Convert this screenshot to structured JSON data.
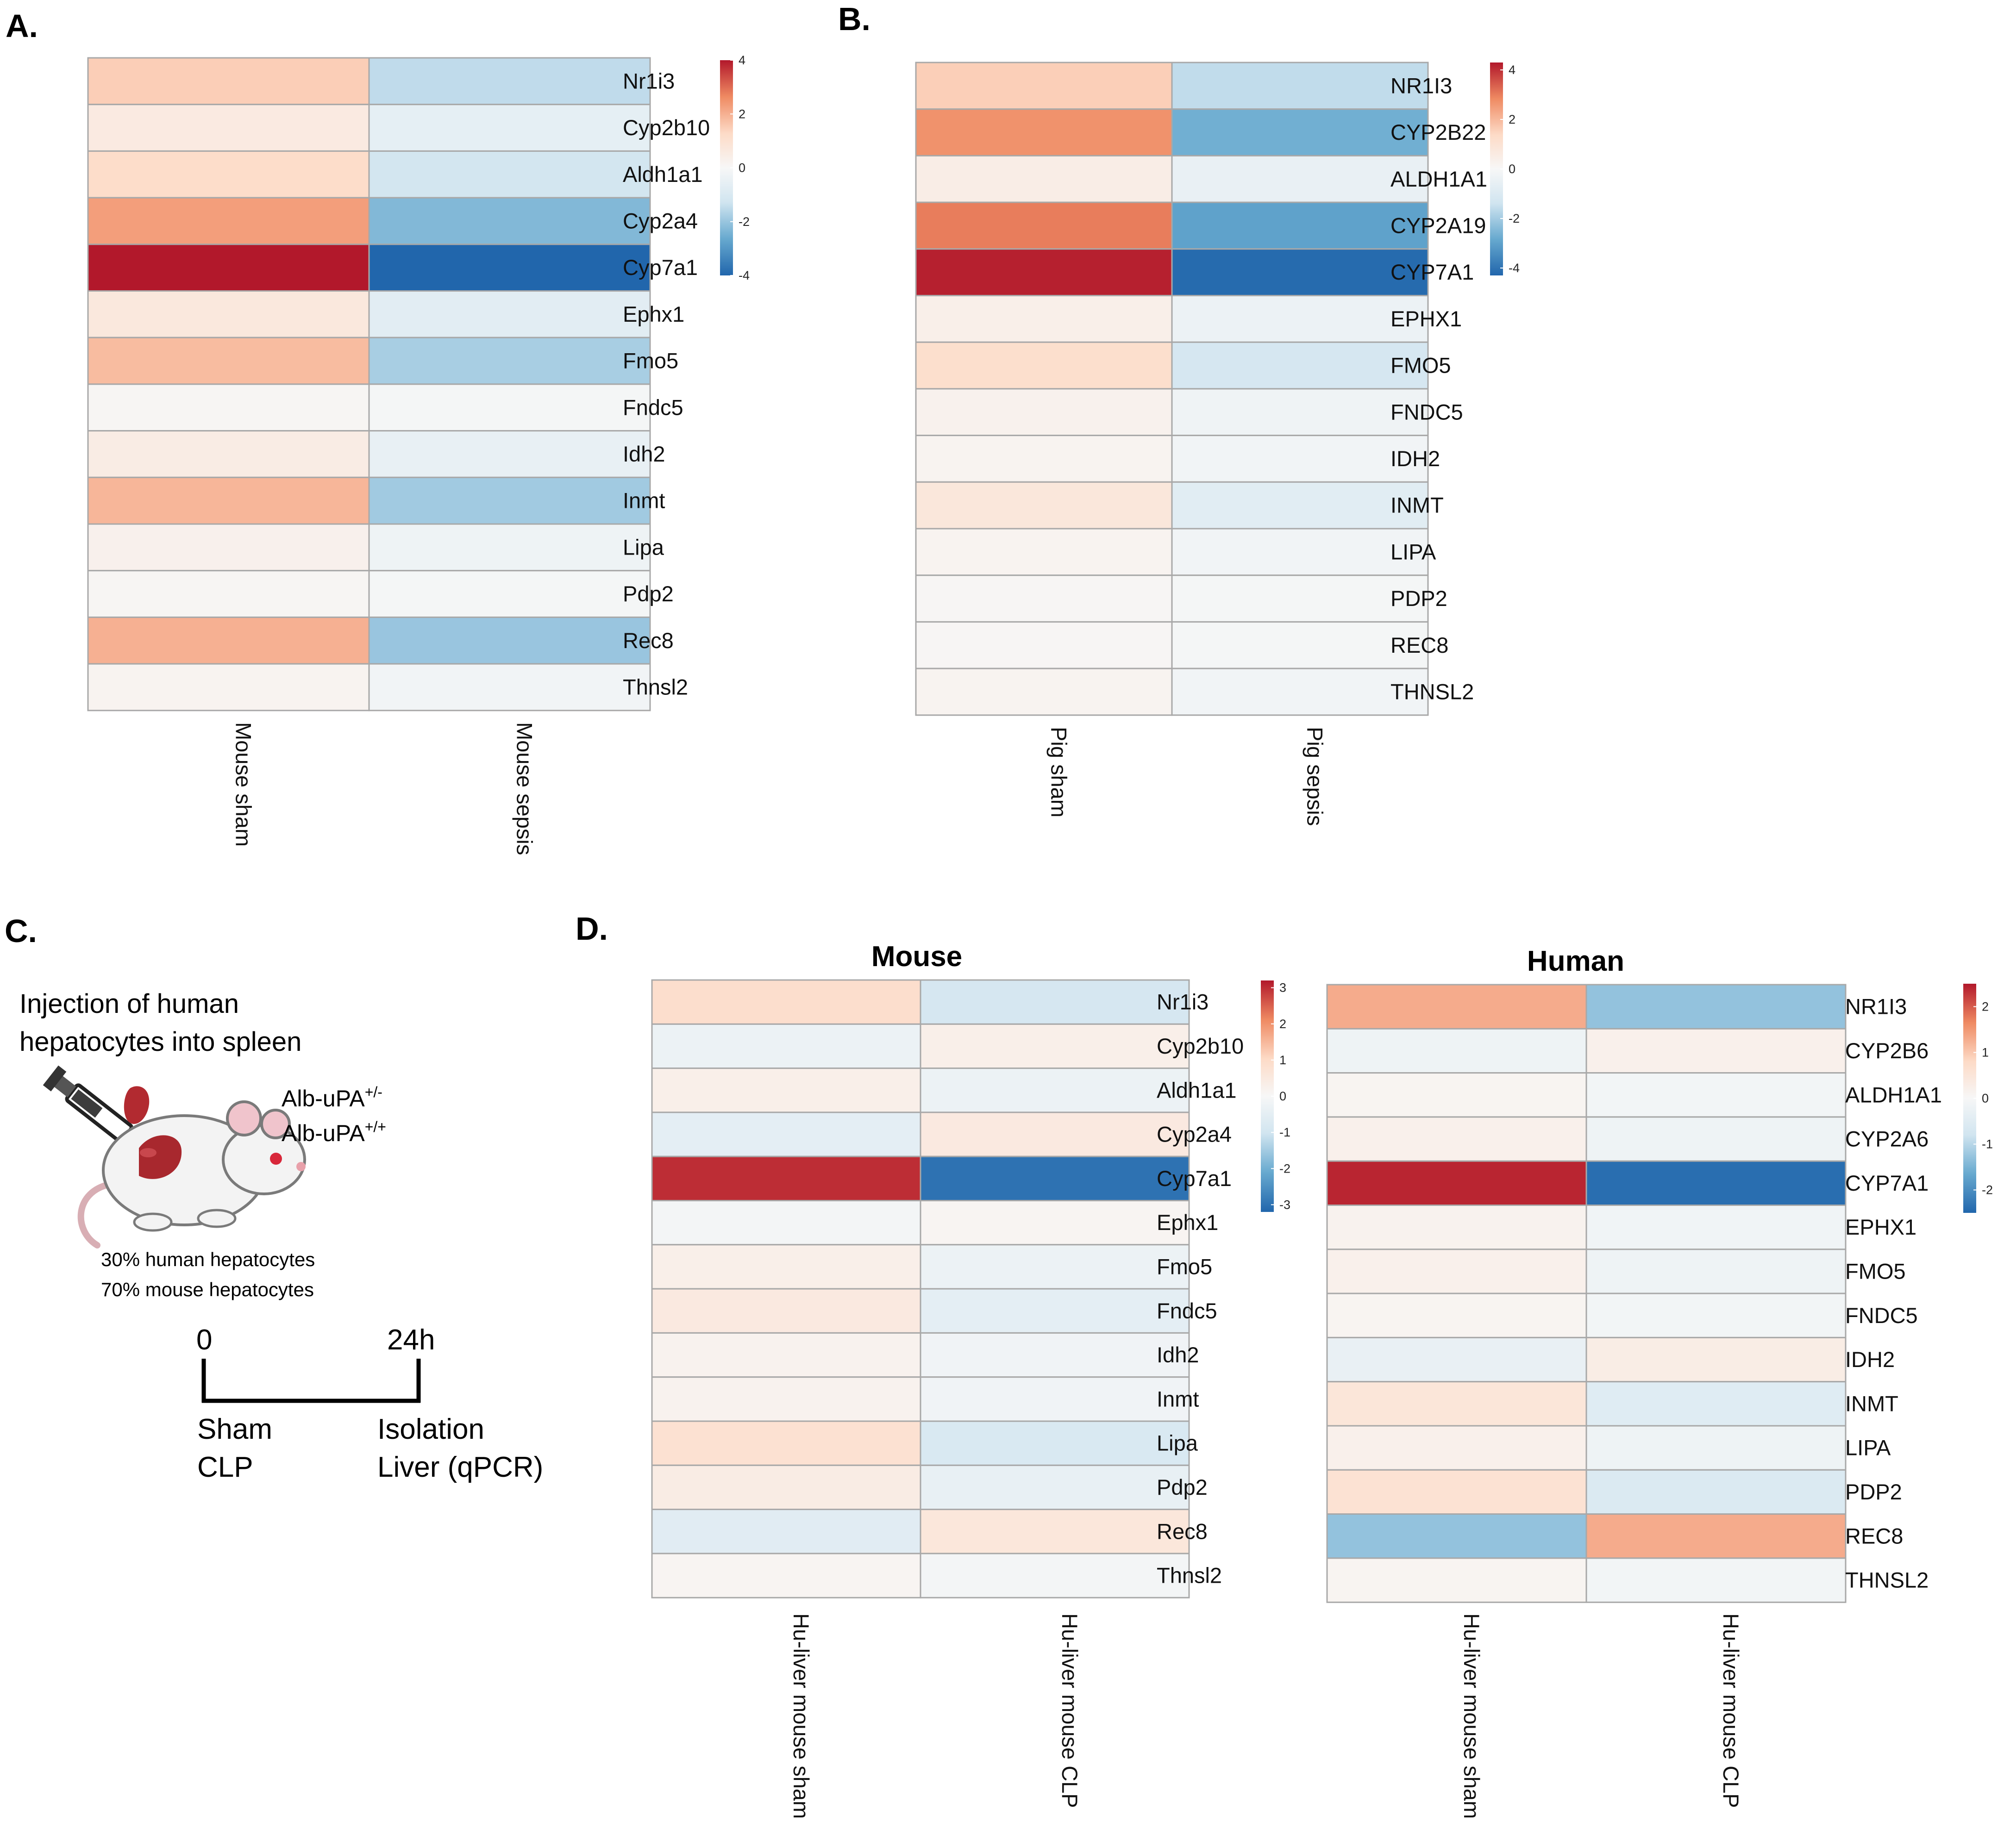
{
  "palette": {
    "neg": "#2166ac",
    "neg_mid": "#67a9cf",
    "neg_light": "#d1e5f0",
    "zero": "#f7f7f7",
    "pos_light": "#fddbc7",
    "pos_mid": "#ef8a62",
    "pos": "#b2182b"
  },
  "panel_c": {
    "letter": "C.",
    "title_line1": "Injection of human",
    "title_line2": "hepatocytes into spleen",
    "genotype1": "Alb-uPA",
    "genotype1_sup": "+/-",
    "genotype2": "Alb-uPA",
    "genotype2_sup": "+/+",
    "hep_line1": "30% human hepatocytes",
    "hep_line2": "70% mouse hepatocytes",
    "time_start": "0",
    "time_end": "24h",
    "left_line1": "Sham",
    "left_line2": "CLP",
    "right_line1": "Isolation",
    "right_line2": "Liver (qPCR)",
    "icons": [
      "syringe-icon",
      "mouse-icon",
      "liver-icon",
      "spleen-icon"
    ]
  },
  "chart_data": [
    {
      "id": "A",
      "letter": "A.",
      "type": "heatmap",
      "title": "",
      "columns": [
        "Mouse sham",
        "Mouse sepsis"
      ],
      "rows": [
        "Nr1i3",
        "Cyp2b10",
        "Aldh1a1",
        "Cyp2a4",
        "Cyp7a1",
        "Ephx1",
        "Fmo5",
        "Fndc5",
        "Idh2",
        "Inmt",
        "Lipa",
        "Pdp2",
        "Rec8",
        "Thnsl2"
      ],
      "values": [
        [
          1.5,
          -1.5
        ],
        [
          0.6,
          -0.6
        ],
        [
          1.2,
          -1.2
        ],
        [
          2.3,
          -2.3
        ],
        [
          4.0,
          -4.0
        ],
        [
          0.7,
          -0.7
        ],
        [
          1.8,
          -1.8
        ],
        [
          0.1,
          -0.1
        ],
        [
          0.5,
          -0.5
        ],
        [
          1.9,
          -1.9
        ],
        [
          0.3,
          -0.3
        ],
        [
          0.1,
          -0.1
        ],
        [
          2.0,
          -2.0
        ],
        [
          0.2,
          -0.2
        ]
      ],
      "legend_ticks": [
        "4",
        "2",
        "0",
        "-2",
        "-4"
      ],
      "scale_range": [
        -4,
        4
      ]
    },
    {
      "id": "B",
      "letter": "B.",
      "type": "heatmap",
      "title": "",
      "columns": [
        "Pig sham",
        "Pig sepsis"
      ],
      "rows": [
        "NR1I3",
        "CYP2B22",
        "ALDH1A1",
        "CYP2A19",
        "CYP7A1",
        "EPHX1",
        "FMO5",
        "FNDC5",
        "IDH2",
        "INMT",
        "LIPA",
        "PDP2",
        "REC8",
        "THNSL2"
      ],
      "values": [
        [
          1.6,
          -1.6
        ],
        [
          2.7,
          -2.7
        ],
        [
          0.5,
          -0.5
        ],
        [
          3.0,
          -3.0
        ],
        [
          4.2,
          -4.2
        ],
        [
          0.4,
          -0.4
        ],
        [
          1.2,
          -1.2
        ],
        [
          0.3,
          -0.3
        ],
        [
          0.2,
          -0.2
        ],
        [
          0.8,
          -0.8
        ],
        [
          0.2,
          -0.2
        ],
        [
          0.1,
          -0.1
        ],
        [
          0.1,
          -0.1
        ],
        [
          0.2,
          -0.2
        ]
      ],
      "legend_ticks": [
        "4",
        "2",
        "0",
        "-2",
        "-4"
      ],
      "scale_range": [
        -4.3,
        4.3
      ]
    },
    {
      "id": "D-mouse",
      "letter": "D.",
      "type": "heatmap",
      "title": "Mouse",
      "columns": [
        "Hu-liver mouse sham",
        "Hu-liver mouse CLP"
      ],
      "rows": [
        "Nr1i3",
        "Cyp2b10",
        "Aldh1a1",
        "Cyp2a4",
        "Cyp7a1",
        "Ephx1",
        "Fmo5",
        "Fndc5",
        "Idh2",
        "Inmt",
        "Lipa",
        "Pdp2",
        "Rec8",
        "Thnsl2"
      ],
      "values": [
        [
          0.9,
          -0.9
        ],
        [
          -0.3,
          0.3
        ],
        [
          0.3,
          -0.3
        ],
        [
          -0.5,
          0.5
        ],
        [
          3.0,
          -3.0
        ],
        [
          -0.1,
          0.1
        ],
        [
          0.3,
          -0.3
        ],
        [
          0.5,
          -0.5
        ],
        [
          0.2,
          -0.2
        ],
        [
          0.2,
          -0.2
        ],
        [
          0.8,
          -0.8
        ],
        [
          0.4,
          -0.4
        ],
        [
          -0.6,
          0.6
        ],
        [
          0.1,
          -0.1
        ]
      ],
      "legend_ticks": [
        "3",
        "2",
        "1",
        "0",
        "-1",
        "-2",
        "-3"
      ],
      "scale_range": [
        -3.2,
        3.2
      ]
    },
    {
      "id": "D-human",
      "letter": "",
      "type": "heatmap",
      "title": "Human",
      "columns": [
        "Hu-liver mouse sham",
        "Hu-liver mouse CLP"
      ],
      "rows": [
        "NR1I3",
        "CYP2B6",
        "ALDH1A1",
        "CYP2A6",
        "CYP7A1",
        "EPHX1",
        "FMO5",
        "FNDC5",
        "IDH2",
        "INMT",
        "LIPA",
        "PDP2",
        "REC8",
        "THNSL2"
      ],
      "values": [
        [
          1.3,
          -1.3
        ],
        [
          -0.2,
          0.2
        ],
        [
          0.1,
          -0.1
        ],
        [
          0.2,
          -0.2
        ],
        [
          2.4,
          -2.4
        ],
        [
          0.15,
          -0.15
        ],
        [
          0.2,
          -0.2
        ],
        [
          0.1,
          -0.1
        ],
        [
          -0.3,
          0.3
        ],
        [
          0.5,
          -0.5
        ],
        [
          0.2,
          -0.2
        ],
        [
          0.6,
          -0.6
        ],
        [
          -1.3,
          1.3
        ],
        [
          0.1,
          -0.1
        ]
      ],
      "legend_ticks": [
        "2",
        "1",
        "0",
        "-1",
        "-2"
      ],
      "scale_range": [
        -2.5,
        2.5
      ]
    }
  ]
}
